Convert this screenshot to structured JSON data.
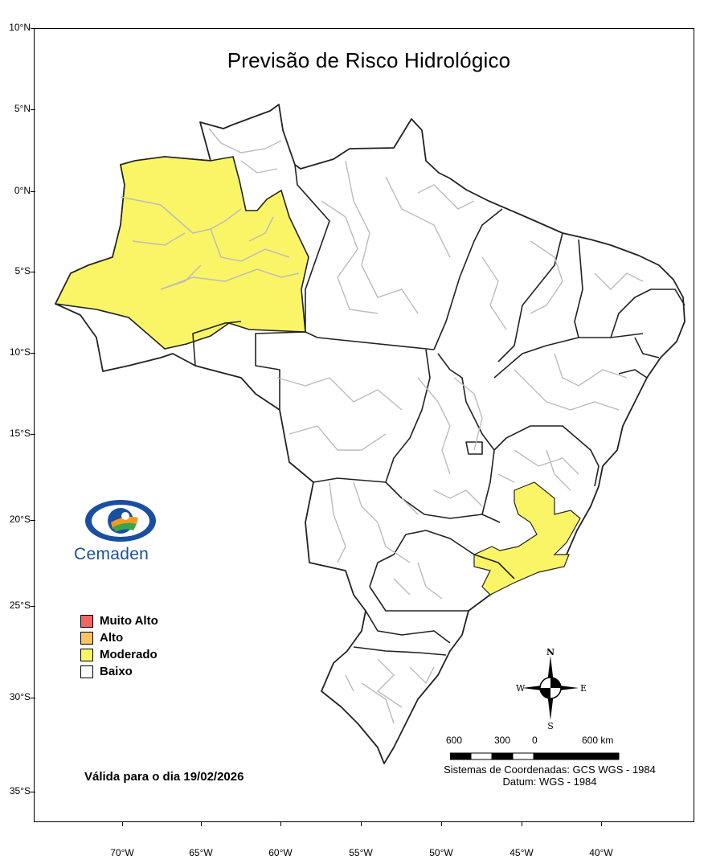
{
  "title": "Previsão de Risco Hidrológico",
  "lat_labels": [
    "10°N",
    "5°N",
    "0°N",
    "5°S",
    "10°S",
    "15°S",
    "20°S",
    "25°S",
    "30°S",
    "35°S"
  ],
  "lon_labels": [
    "70°W",
    "65°W",
    "60°W",
    "55°W",
    "50°W",
    "45°W",
    "40°W"
  ],
  "legend": {
    "items": [
      {
        "label": "Muito Alto",
        "color": "#f46464"
      },
      {
        "label": "Alto",
        "color": "#f9c462"
      },
      {
        "label": "Moderado",
        "color": "#faf566"
      },
      {
        "label": "Baixo",
        "color": "#ffffff"
      }
    ]
  },
  "logo": {
    "text": "Cemaden"
  },
  "validity": "Válida para o dia 19/02/2026",
  "scale": {
    "labels": [
      "600",
      "300",
      "0",
      "600 km"
    ]
  },
  "compass": {
    "n": "N",
    "s": "S",
    "e": "E",
    "w": "W"
  },
  "coordinate_system": "Sistemas de Coordenadas: GCS WGS - 1984",
  "datum": "Datum: WGS - 1984",
  "map_colors": {
    "moderado": "#faf566",
    "border": "#222222",
    "municipal": "#bcbcbc"
  }
}
